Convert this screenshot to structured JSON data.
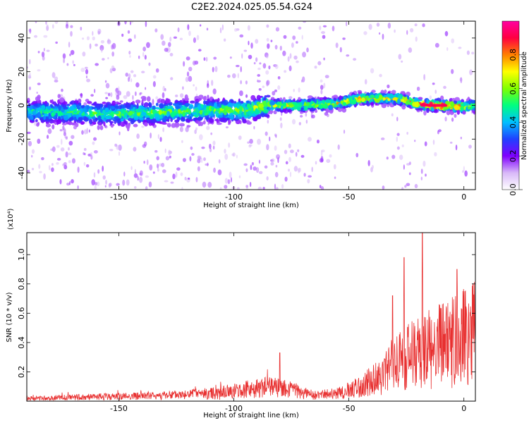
{
  "title": "C2E2.2024.025.05.54.G24",
  "chart_data": [
    {
      "type": "heatmap",
      "xlabel": "Height of straight line (km)",
      "ylabel": "Frequency (Hz)",
      "xlim": [
        -190,
        5
      ],
      "ylim": [
        -50,
        50
      ],
      "xticks": [
        -150,
        -100,
        -50,
        0
      ],
      "yticks": [
        -40,
        -20,
        0,
        20,
        40
      ],
      "colorbar": {
        "label": "Normalized spectral amplitude",
        "range": [
          0,
          1
        ],
        "ticks": [
          0.0,
          0.2,
          0.4,
          0.6,
          0.8
        ],
        "colors": [
          "#ffffff",
          "#d8b8f8",
          "#8000ff",
          "#2040ff",
          "#00c0ff",
          "#00ff80",
          "#80ff00",
          "#ffff00",
          "#ff8000",
          "#ff0040",
          "#ff00a0"
        ]
      },
      "ridge": [
        {
          "x": -190,
          "y": -4,
          "amp": 0.35
        },
        {
          "x": -170,
          "y": -4,
          "amp": 0.4
        },
        {
          "x": -150,
          "y": -5,
          "amp": 0.4
        },
        {
          "x": -130,
          "y": -4,
          "amp": 0.45
        },
        {
          "x": -110,
          "y": -3,
          "amp": 0.45
        },
        {
          "x": -95,
          "y": -3,
          "amp": 0.5
        },
        {
          "x": -85,
          "y": 0,
          "amp": 0.55
        },
        {
          "x": -70,
          "y": 0,
          "amp": 0.55
        },
        {
          "x": -55,
          "y": 1,
          "amp": 0.6
        },
        {
          "x": -45,
          "y": 4,
          "amp": 0.6
        },
        {
          "x": -35,
          "y": 4,
          "amp": 0.55
        },
        {
          "x": -28,
          "y": 4,
          "amp": 0.55
        },
        {
          "x": -20,
          "y": 1,
          "amp": 0.65
        },
        {
          "x": -15,
          "y": 0,
          "amp": 0.95
        },
        {
          "x": -8,
          "y": 0,
          "amp": 0.75
        },
        {
          "x": 0,
          "y": -1,
          "amp": 0.6
        },
        {
          "x": 5,
          "y": 0,
          "amp": 0.55
        }
      ]
    },
    {
      "type": "line",
      "xlabel": "Height of straight line (km)",
      "ylabel": "SNR (10 * v/v)",
      "y_multiplier": "(x10⁴)",
      "xlim": [
        -190,
        5
      ],
      "ylim": [
        0,
        1.15
      ],
      "xticks": [
        -150,
        -100,
        -50,
        0
      ],
      "yticks": [
        0.2,
        0.4,
        0.6,
        0.8,
        1.0
      ],
      "series": [
        {
          "color": "#e83030",
          "envelope": [
            {
              "x": -190,
              "y": 0.03
            },
            {
              "x": -170,
              "y": 0.04
            },
            {
              "x": -150,
              "y": 0.05
            },
            {
              "x": -130,
              "y": 0.06
            },
            {
              "x": -110,
              "y": 0.08
            },
            {
              "x": -95,
              "y": 0.12
            },
            {
              "x": -85,
              "y": 0.15
            },
            {
              "x": -75,
              "y": 0.12
            },
            {
              "x": -65,
              "y": 0.06
            },
            {
              "x": -55,
              "y": 0.08
            },
            {
              "x": -45,
              "y": 0.15
            },
            {
              "x": -35,
              "y": 0.28
            },
            {
              "x": -30,
              "y": 0.4
            },
            {
              "x": -25,
              "y": 0.45
            },
            {
              "x": -20,
              "y": 0.5
            },
            {
              "x": -15,
              "y": 0.55
            },
            {
              "x": -10,
              "y": 0.58
            },
            {
              "x": -5,
              "y": 0.62
            },
            {
              "x": 0,
              "y": 0.68
            },
            {
              "x": 5,
              "y": 0.72
            }
          ],
          "peaks": [
            {
              "x": -18,
              "y": 1.15
            },
            {
              "x": -26,
              "y": 0.98
            },
            {
              "x": -3,
              "y": 0.9
            },
            {
              "x": -31,
              "y": 0.72
            },
            {
              "x": -80,
              "y": 0.33
            },
            {
              "x": 4,
              "y": 0.8
            }
          ]
        }
      ]
    }
  ]
}
